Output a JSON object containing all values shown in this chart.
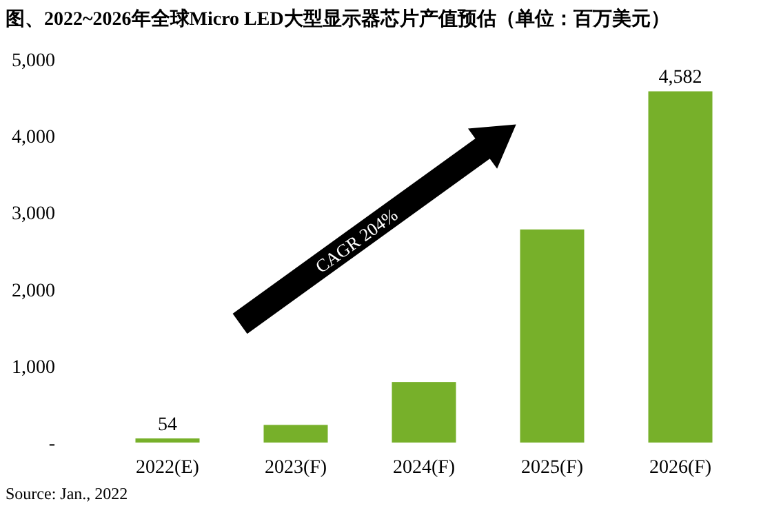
{
  "chart_data": {
    "type": "bar",
    "title": "图、2022~2026年全球Micro LED大型显示器芯片产值预估（单位：百万美元）",
    "categories": [
      "2022(E)",
      "2023(F)",
      "2024(F)",
      "2025(F)",
      "2026(F)"
    ],
    "values": [
      54,
      230,
      790,
      2780,
      4582
    ],
    "value_labels": [
      "54",
      null,
      null,
      null,
      "4,582"
    ],
    "color": "#77b02a",
    "ylim": [
      0,
      5000
    ],
    "yticks": [
      {
        "value": 0,
        "label": "-"
      },
      {
        "value": 1000,
        "label": "1,000"
      },
      {
        "value": 2000,
        "label": "2,000"
      },
      {
        "value": 3000,
        "label": "3,000"
      },
      {
        "value": 4000,
        "label": "4,000"
      },
      {
        "value": 5000,
        "label": "5,000"
      }
    ],
    "grid": false,
    "annotations": [
      "CAGR 204%",
      "Source: Jan., 2022"
    ]
  }
}
